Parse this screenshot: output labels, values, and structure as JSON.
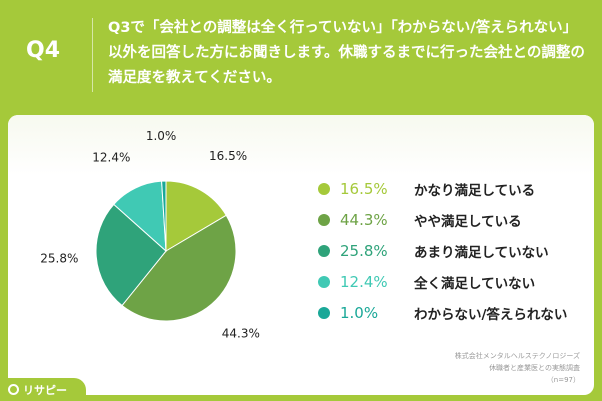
{
  "header": {
    "q_label": "Q4",
    "question": "Q3で「会社との調整は全く行っていない」「わからない/答えられない」以外を回答した方にお聞きします。休職するまでに行った会社との調整の満足度を教えてください。"
  },
  "chart_data": {
    "type": "pie",
    "categories": [
      "かなり満足している",
      "やや満足している",
      "あまり満足していない",
      "全く満足していない",
      "わからない/答えられない"
    ],
    "values": [
      16.5,
      44.3,
      25.8,
      12.4,
      1.0
    ],
    "labels": [
      "16.5%",
      "44.3%",
      "25.8%",
      "12.4%",
      "1.0%"
    ],
    "colors": [
      "#a5c93a",
      "#6ea346",
      "#2fa37a",
      "#40c9b4",
      "#1aa898"
    ],
    "start": "12 o'clock",
    "direction": "clockwise",
    "legend_position": "right"
  },
  "source": {
    "line1": "株式会社メンタルヘルステクノロジーズ",
    "line2": "休職者と産業医との実態調査",
    "line3": "（n=97）"
  },
  "logo": {
    "text": "リサピー"
  }
}
